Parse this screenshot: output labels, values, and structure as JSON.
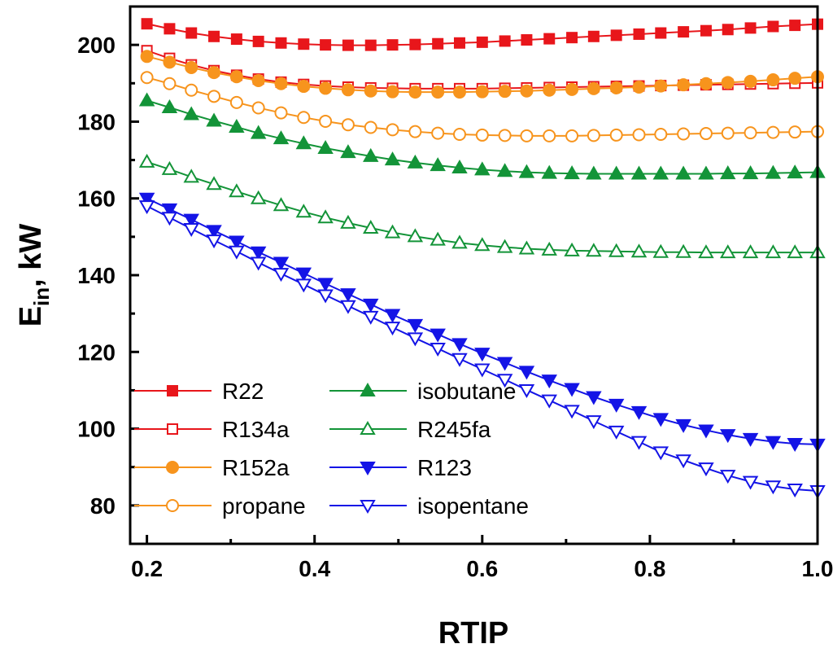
{
  "chart_data": {
    "type": "line",
    "title": "",
    "xlabel": "RTIP",
    "ylabel_main": "E",
    "ylabel_sub": "in",
    "ylabel_unit": ", kW",
    "xlim": [
      0.18,
      1.0
    ],
    "ylim": [
      70,
      210
    ],
    "xticks": [
      0.2,
      0.4,
      0.6,
      0.8,
      1.0
    ],
    "xtick_labels": [
      "0.2",
      "0.4",
      "0.6",
      "0.8",
      "1.0"
    ],
    "yticks": [
      80,
      100,
      120,
      140,
      160,
      180,
      200
    ],
    "ytick_labels": [
      "80",
      "100",
      "120",
      "140",
      "160",
      "180",
      "200"
    ],
    "legend_position": "bottom-left",
    "x": [
      0.2,
      0.227,
      0.253,
      0.28,
      0.307,
      0.333,
      0.36,
      0.387,
      0.413,
      0.44,
      0.467,
      0.493,
      0.52,
      0.547,
      0.573,
      0.6,
      0.627,
      0.653,
      0.68,
      0.707,
      0.733,
      0.76,
      0.787,
      0.813,
      0.84,
      0.867,
      0.893,
      0.92,
      0.947,
      0.973,
      1.0
    ],
    "series": [
      {
        "name": "R22",
        "color": "#e8161b",
        "marker": "square",
        "filled": true,
        "values": [
          205.5,
          204.2,
          203.1,
          202.2,
          201.5,
          200.9,
          200.5,
          200.2,
          200.0,
          199.9,
          199.9,
          200.0,
          200.1,
          200.3,
          200.5,
          200.7,
          201.0,
          201.3,
          201.6,
          201.9,
          202.2,
          202.5,
          202.8,
          203.1,
          203.4,
          203.7,
          204.0,
          204.4,
          204.8,
          205.1,
          205.4
        ]
      },
      {
        "name": "R134a",
        "color": "#e8161b",
        "marker": "square",
        "filled": false,
        "values": [
          198.5,
          196.5,
          194.8,
          193.3,
          192.1,
          191.1,
          190.3,
          189.7,
          189.3,
          189.0,
          188.8,
          188.7,
          188.6,
          188.6,
          188.6,
          188.6,
          188.7,
          188.8,
          188.9,
          189.0,
          189.1,
          189.2,
          189.3,
          189.4,
          189.5,
          189.6,
          189.7,
          189.8,
          189.9,
          190.0,
          190.1
        ]
      },
      {
        "name": "R152a",
        "color": "#f7941d",
        "marker": "circle",
        "filled": true,
        "values": [
          197.0,
          195.5,
          194.1,
          192.8,
          191.7,
          190.7,
          189.9,
          189.2,
          188.7,
          188.3,
          188.0,
          187.8,
          187.7,
          187.7,
          187.7,
          187.8,
          187.9,
          188.0,
          188.2,
          188.4,
          188.6,
          188.8,
          189.0,
          189.3,
          189.6,
          189.9,
          190.2,
          190.5,
          190.9,
          191.3,
          191.7
        ]
      },
      {
        "name": "propane",
        "color": "#f7941d",
        "marker": "circle",
        "filled": false,
        "values": [
          191.5,
          189.9,
          188.2,
          186.6,
          185.0,
          183.6,
          182.3,
          181.1,
          180.1,
          179.2,
          178.5,
          177.9,
          177.4,
          177.0,
          176.7,
          176.5,
          176.4,
          176.3,
          176.3,
          176.3,
          176.4,
          176.5,
          176.6,
          176.7,
          176.8,
          176.9,
          177.0,
          177.1,
          177.2,
          177.3,
          177.4
        ]
      },
      {
        "name": "isobutane",
        "color": "#139438",
        "marker": "triangle-up",
        "filled": true,
        "values": [
          185.5,
          183.7,
          181.9,
          180.2,
          178.6,
          177.0,
          175.6,
          174.3,
          173.1,
          172.0,
          171.0,
          170.1,
          169.3,
          168.6,
          168.0,
          167.5,
          167.1,
          166.8,
          166.6,
          166.5,
          166.4,
          166.4,
          166.4,
          166.4,
          166.4,
          166.4,
          166.5,
          166.5,
          166.6,
          166.7,
          166.8
        ]
      },
      {
        "name": "R245fa",
        "color": "#139438",
        "marker": "triangle-up",
        "filled": false,
        "values": [
          169.5,
          167.6,
          165.6,
          163.7,
          161.8,
          160.0,
          158.2,
          156.5,
          155.0,
          153.6,
          152.3,
          151.1,
          150.1,
          149.2,
          148.4,
          147.8,
          147.3,
          146.9,
          146.6,
          146.4,
          146.3,
          146.2,
          146.1,
          146.0,
          146.0,
          145.9,
          145.9,
          145.9,
          145.9,
          145.9,
          145.9
        ]
      },
      {
        "name": "R123",
        "color": "#1414e6",
        "marker": "triangle-down",
        "filled": true,
        "values": [
          160.0,
          157.2,
          154.5,
          151.6,
          148.8,
          146.0,
          143.3,
          140.5,
          137.8,
          135.1,
          132.4,
          129.7,
          127.1,
          124.6,
          122.1,
          119.6,
          117.2,
          114.9,
          112.6,
          110.4,
          108.3,
          106.3,
          104.4,
          102.6,
          101.0,
          99.6,
          98.4,
          97.4,
          96.6,
          96.1,
          95.9
        ]
      },
      {
        "name": "isopentane",
        "color": "#1414e6",
        "marker": "triangle-down",
        "filled": false,
        "values": [
          158.0,
          155.0,
          152.1,
          149.1,
          146.2,
          143.3,
          140.4,
          137.6,
          134.8,
          132.0,
          129.2,
          126.4,
          123.6,
          120.9,
          118.2,
          115.5,
          112.8,
          110.1,
          107.4,
          104.7,
          102.0,
          99.3,
          96.6,
          93.9,
          91.8,
          89.7,
          87.8,
          86.2,
          85.0,
          84.2,
          83.8
        ]
      }
    ]
  }
}
